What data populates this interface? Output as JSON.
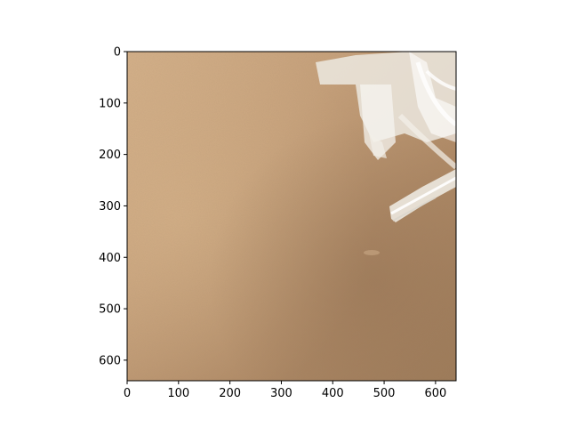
{
  "figure": {
    "background": "#ffffff",
    "image_description_colors": {
      "cardboard_light": "#d1ad84",
      "cardboard_mid": "#b99470",
      "cardboard_dark": "#9c7a58",
      "tape_white": "#f4f2ee"
    },
    "axes": {
      "x_ticks": [
        "0",
        "100",
        "200",
        "300",
        "400",
        "500",
        "600"
      ],
      "y_ticks": [
        "0",
        "100",
        "200",
        "300",
        "400",
        "500",
        "600"
      ],
      "x_range": [
        0,
        640
      ],
      "y_range": [
        640,
        0
      ]
    }
  }
}
